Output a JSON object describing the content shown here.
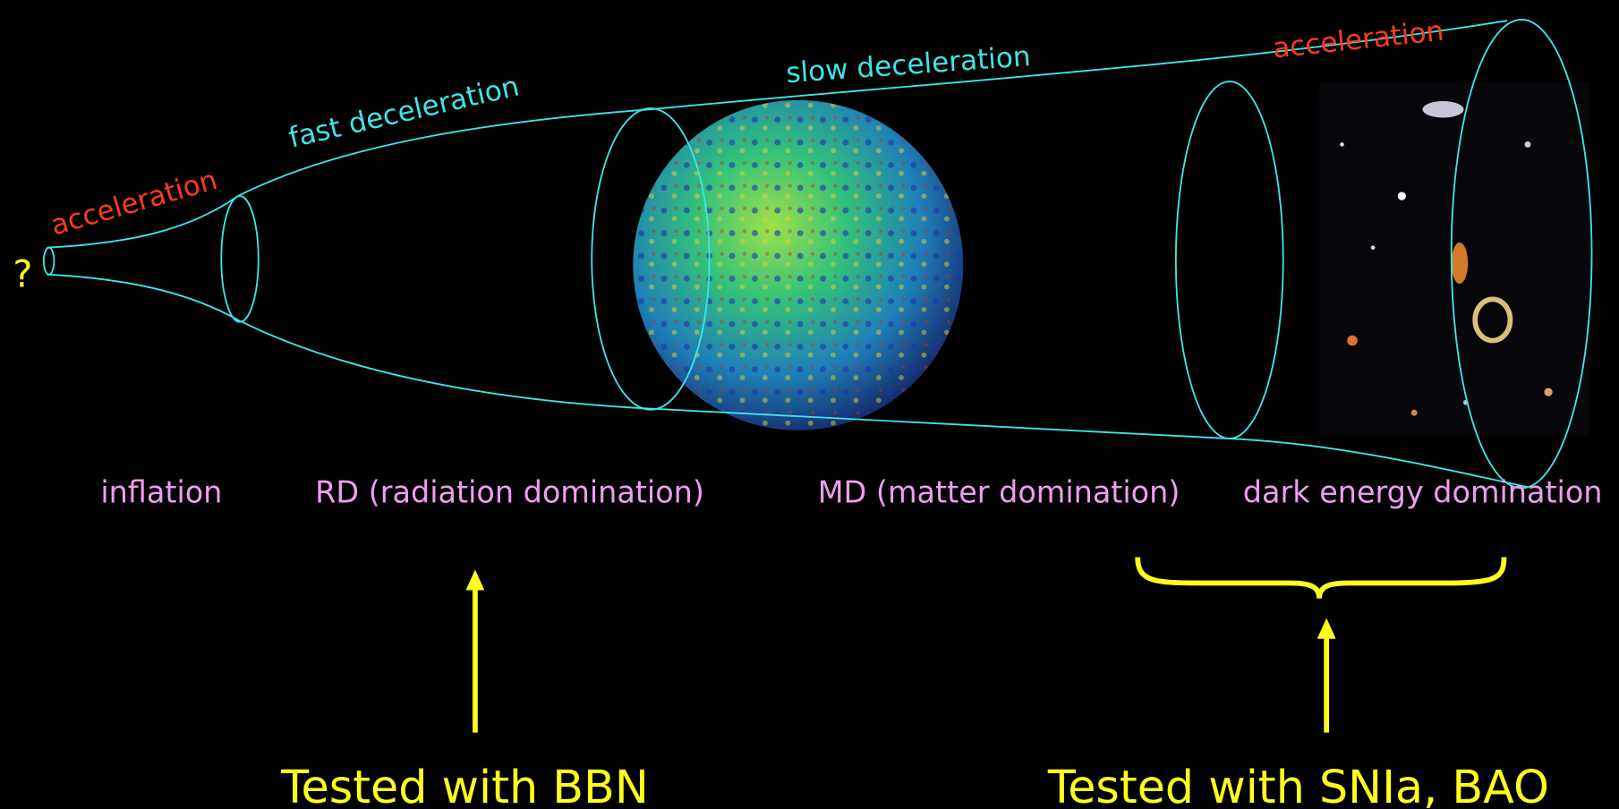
{
  "diagram": {
    "question": "?",
    "phase_labels": [
      "acceleration",
      "fast deceleration",
      "slow deceleration",
      "acceleration"
    ],
    "eras": [
      "inflation",
      "RD (radiation domination)",
      "MD (matter domination)",
      "dark energy domination"
    ],
    "tests": [
      "Tested with BBN",
      "Tested with SNIa, BAO"
    ]
  }
}
